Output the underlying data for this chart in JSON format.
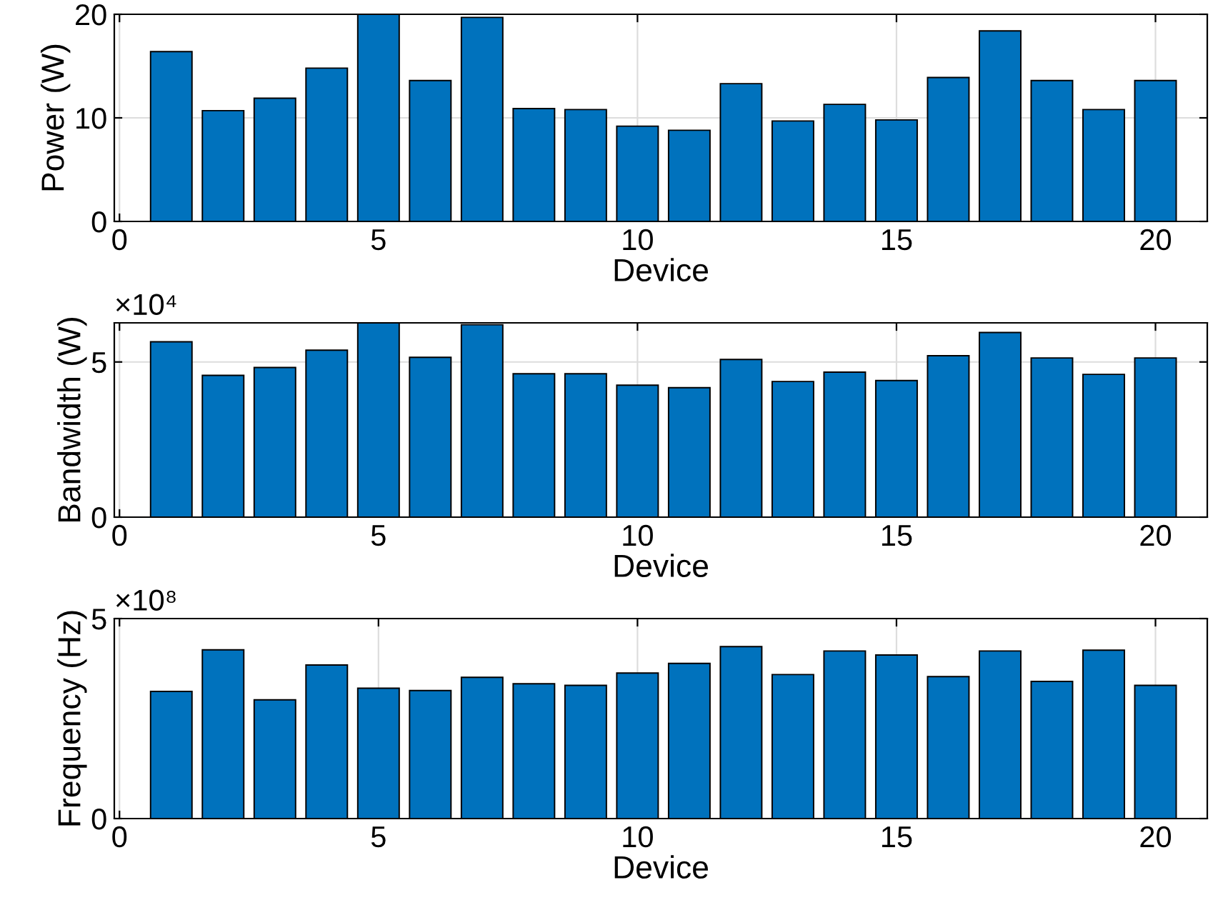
{
  "chart_data": [
    {
      "type": "bar",
      "xlabel": "Device",
      "ylabel": "Power (W)",
      "x": [
        1,
        2,
        3,
        4,
        5,
        6,
        7,
        8,
        9,
        10,
        11,
        12,
        13,
        14,
        15,
        16,
        17,
        18,
        19,
        20
      ],
      "series": [
        {
          "color": "#0072bd",
          "values": [
            16.4,
            10.7,
            11.9,
            14.8,
            20,
            13.6,
            19.7,
            10.9,
            10.8,
            9.2,
            8.8,
            13.3,
            9.7,
            11.3,
            9.8,
            13.9,
            18.4,
            13.6,
            10.8,
            13.6
          ]
        }
      ],
      "xlim": [
        -0.1,
        21
      ],
      "xticks": [
        0,
        5,
        10,
        15,
        20
      ],
      "ylim": [
        0,
        20
      ],
      "yticks": [
        0,
        10,
        20
      ],
      "grid": true
    },
    {
      "type": "bar",
      "xlabel": "Device",
      "ylabel": "Bandwidth (W)",
      "annotations": [
        "×10⁴"
      ],
      "x": [
        1,
        2,
        3,
        4,
        5,
        6,
        7,
        8,
        9,
        10,
        11,
        12,
        13,
        14,
        15,
        16,
        17,
        18,
        19,
        20
      ],
      "series": [
        {
          "color": "#0072bd",
          "values": [
            5.65,
            4.57,
            4.82,
            5.38,
            6.26,
            5.15,
            6.2,
            4.62,
            4.62,
            4.25,
            4.17,
            5.08,
            4.37,
            4.67,
            4.4,
            5.2,
            5.95,
            5.13,
            4.6,
            5.13
          ]
        }
      ],
      "xlim": [
        -0.1,
        21
      ],
      "xticks": [
        0,
        5,
        10,
        15,
        20
      ],
      "ylim": [
        0,
        6.26
      ],
      "yticks": [
        0,
        5
      ],
      "grid": true
    },
    {
      "type": "bar",
      "xlabel": "Device",
      "ylabel": "Frequency (Hz)",
      "annotations": [
        "×10⁸"
      ],
      "x": [
        1,
        2,
        3,
        4,
        5,
        6,
        7,
        8,
        9,
        10,
        11,
        12,
        13,
        14,
        15,
        16,
        17,
        18,
        19,
        20
      ],
      "series": [
        {
          "color": "#0072bd",
          "values": [
            3.18,
            4.22,
            2.97,
            3.84,
            3.26,
            3.2,
            3.53,
            3.37,
            3.33,
            3.64,
            3.88,
            4.3,
            3.6,
            4.19,
            4.09,
            3.55,
            4.19,
            3.43,
            4.21,
            3.33
          ]
        }
      ],
      "xlim": [
        -0.1,
        21
      ],
      "xticks": [
        0,
        5,
        10,
        15,
        20
      ],
      "ylim": [
        0,
        5
      ],
      "yticks": [
        0,
        5
      ],
      "grid": true
    }
  ]
}
